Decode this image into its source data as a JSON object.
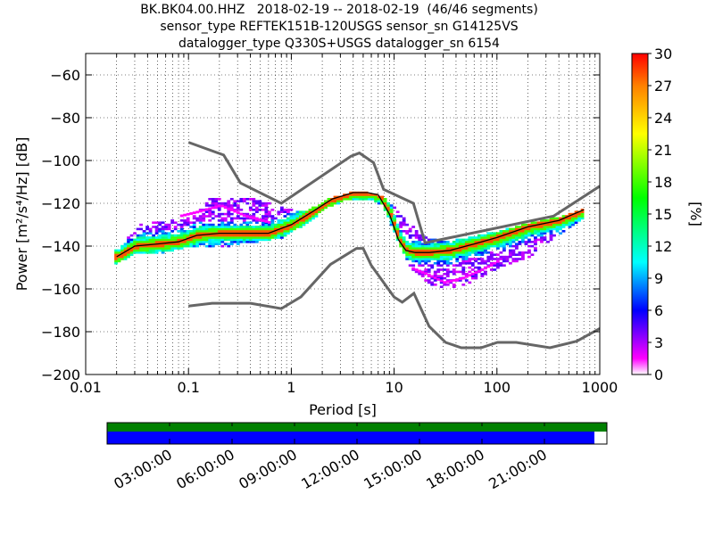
{
  "title": {
    "line1": "BK.BK04.00.HHZ   2018-02-19 -- 2018-02-19  (46/46 segments)",
    "line2": "sensor_type REFTEK151B-120USGS sensor_sn G14125VS",
    "line3": "datalogger_type Q330S+USGS datalogger_sn 6154"
  },
  "chart_data": {
    "type": "heatmap",
    "xlabel": "Period [s]",
    "ylabel": "Power [m²/s⁴/Hz] [dB]",
    "xscale": "log",
    "xlim": [
      0.01,
      1000
    ],
    "ylim": [
      -200,
      -50
    ],
    "xticks": [
      0.01,
      0.1,
      1,
      10,
      100,
      1000
    ],
    "xtick_labels": [
      "0.01",
      "0.1",
      "1",
      "10",
      "100",
      "1000"
    ],
    "yticks": [
      -60,
      -80,
      -100,
      -120,
      -140,
      -160,
      -180,
      -200
    ],
    "ytick_labels": [
      "−60",
      "−80",
      "−100",
      "−120",
      "−140",
      "−160",
      "−180",
      "−200"
    ],
    "grid": true,
    "colorbar": {
      "label": "[%]",
      "range": [
        0,
        30
      ],
      "ticks": [
        0,
        3,
        6,
        9,
        12,
        15,
        18,
        21,
        24,
        27,
        30
      ],
      "tick_labels": [
        "0",
        "3",
        "6",
        "9",
        "12",
        "15",
        "18",
        "21",
        "24",
        "27",
        "30"
      ]
    },
    "new_high_noise_model": {
      "x": [
        0.1,
        0.22,
        0.32,
        0.8,
        3.8,
        4.6,
        6.3,
        7.9,
        15.4,
        20,
        354.8,
        1000
      ],
      "y": [
        -91.5,
        -97.4,
        -110.5,
        -120,
        -98,
        -96.5,
        -101,
        -113.5,
        -120,
        -138.5,
        -126,
        -112
      ]
    },
    "new_low_noise_model": {
      "x": [
        0.1,
        0.17,
        0.4,
        0.8,
        1.24,
        2.4,
        4.3,
        5,
        6,
        10,
        12,
        15.6,
        21.9,
        31.6,
        45,
        70,
        101,
        154,
        328,
        600,
        1000
      ],
      "y": [
        -168,
        -166.7,
        -166.7,
        -169.2,
        -163.7,
        -148.6,
        -141.1,
        -141.1,
        -149,
        -163.8,
        -166.2,
        -162.1,
        -177.5,
        -185,
        -187.5,
        -187.5,
        -185,
        -185,
        -187.5,
        -184.4,
        -178.5
      ]
    },
    "mode_curve": {
      "x": [
        0.02,
        0.03,
        0.05,
        0.08,
        0.12,
        0.2,
        0.35,
        0.6,
        1.0,
        1.6,
        2.5,
        4.0,
        5.5,
        7.0,
        9.0,
        11.0,
        13.0,
        16.0,
        22.0,
        35.0,
        60.0,
        100.0,
        200.0,
        400.0,
        700.0
      ],
      "y": [
        -145,
        -140,
        -139,
        -138,
        -135,
        -134,
        -134,
        -134,
        -130,
        -124,
        -118,
        -115,
        -115,
        -116,
        -125,
        -137,
        -142,
        -143,
        -143,
        -142,
        -139,
        -136,
        -131,
        -128,
        -123
      ]
    },
    "upper_envelope": {
      "x": [
        0.02,
        0.03,
        0.06,
        0.1,
        0.15,
        0.25,
        0.45,
        0.8,
        1.3,
        2.2,
        3.5,
        5.5,
        7.5,
        10,
        14,
        20,
        30,
        50,
        100,
        200,
        400,
        700
      ],
      "y": [
        -142,
        -130,
        -128,
        -126,
        -118,
        -118,
        -118,
        -122,
        -124,
        -118,
        -115,
        -115,
        -117,
        -122,
        -130,
        -136,
        -138,
        -136,
        -133,
        -129,
        -126,
        -122
      ]
    },
    "lower_envelope": {
      "x": [
        0.02,
        0.03,
        0.06,
        0.1,
        0.15,
        0.25,
        0.45,
        0.8,
        1.3,
        2.2,
        3.5,
        5.5,
        7.5,
        10,
        14,
        20,
        30,
        50,
        100,
        200,
        400,
        700
      ],
      "y": [
        -148,
        -143,
        -143,
        -140,
        -140,
        -140,
        -138,
        -136,
        -130,
        -122,
        -118,
        -118,
        -121,
        -136,
        -150,
        -157,
        -161,
        -158,
        -150,
        -145,
        -134,
        -127
      ]
    },
    "outlier_line_low": {
      "x": [
        14,
        20,
        30,
        45,
        70,
        100
      ],
      "y": [
        -150,
        -153,
        -157,
        -155,
        -151,
        -147
      ]
    },
    "outlier_line_high": {
      "x": [
        0.08,
        0.12,
        0.2,
        0.35,
        0.6
      ],
      "y": [
        -126,
        -124,
        -121,
        -126,
        -129
      ]
    }
  },
  "timeline": {
    "ticks": [
      "03:00:00",
      "06:00:00",
      "09:00:00",
      "12:00:00",
      "15:00:00",
      "18:00:00",
      "21:00:00"
    ],
    "tick_hours": [
      3,
      6,
      9,
      12,
      15,
      18,
      21
    ],
    "range_hours": [
      0,
      24
    ],
    "top_bar_coverage": [
      0,
      24
    ],
    "bottom_bar_coverage": [
      0,
      23.4
    ],
    "top_bar_color": "#008000",
    "bottom_bar_color": "#0000ff"
  }
}
